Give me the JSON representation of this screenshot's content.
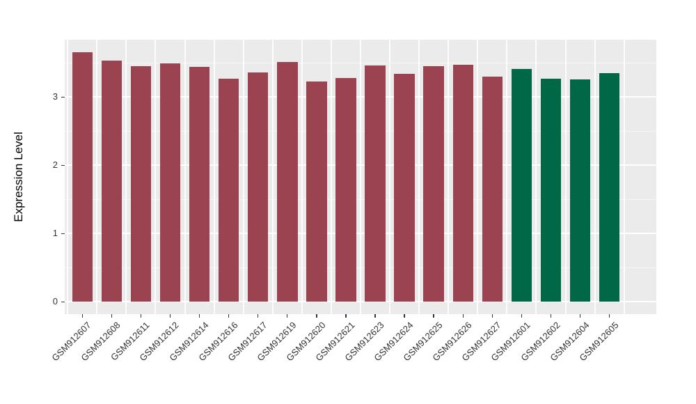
{
  "chart_data": {
    "type": "bar",
    "title": "",
    "xlabel": "",
    "ylabel": "Expression Level",
    "categories": [
      "GSM912607",
      "GSM912608",
      "GSM912611",
      "GSM912612",
      "GSM912614",
      "GSM912616",
      "GSM912617",
      "GSM912619",
      "GSM912620",
      "GSM912621",
      "GSM912623",
      "GSM912624",
      "GSM912625",
      "GSM912626",
      "GSM912627",
      "GSM912601",
      "GSM912602",
      "GSM912604",
      "GSM912605"
    ],
    "values": [
      3.66,
      3.53,
      3.45,
      3.49,
      3.44,
      3.27,
      3.36,
      3.51,
      3.23,
      3.28,
      3.46,
      3.34,
      3.45,
      3.47,
      3.3,
      3.41,
      3.27,
      3.26,
      3.35
    ],
    "group_index": [
      0,
      0,
      0,
      0,
      0,
      0,
      0,
      0,
      0,
      0,
      0,
      0,
      0,
      0,
      0,
      1,
      1,
      1,
      1
    ],
    "palette": [
      "#9B4351",
      "#006847"
    ],
    "y_ticks": [
      0,
      1,
      2,
      3
    ],
    "y_minor_ticks": [
      0.5,
      1.5,
      2.5,
      3.5
    ],
    "ylim": [
      0,
      3.84
    ],
    "x_label_angle": 45,
    "legend": "none",
    "grid": "on",
    "panel_bg": "#EBEBEB",
    "grid_color": "#FFFFFF",
    "figure_bg": "#FFFFFF"
  }
}
